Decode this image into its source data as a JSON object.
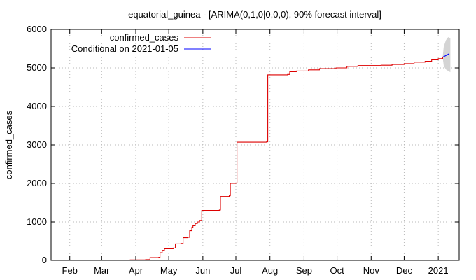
{
  "chart_data": {
    "type": "line",
    "title": "equatorial_guinea -  [ARIMA(0,1,0|0,0,0), 90% forecast interval]",
    "xlabel": "",
    "ylabel": "confirmed_cases",
    "ylim": [
      0,
      6000
    ],
    "xlim": [
      "2020-01-15",
      "2021-01-20"
    ],
    "grid": true,
    "legend_position": "top-center",
    "y_ticks": [
      "0",
      "1000",
      "2000",
      "3000",
      "4000",
      "5000",
      "6000"
    ],
    "x_ticks": [
      {
        "label": "Feb",
        "date": "2020-02-01"
      },
      {
        "label": "Mar",
        "date": "2020-03-01"
      },
      {
        "label": "Apr",
        "date": "2020-04-01"
      },
      {
        "label": "May",
        "date": "2020-05-01"
      },
      {
        "label": "Jun",
        "date": "2020-06-01"
      },
      {
        "label": "Jul",
        "date": "2020-07-01"
      },
      {
        "label": "Aug",
        "date": "2020-08-01"
      },
      {
        "label": "Sep",
        "date": "2020-09-01"
      },
      {
        "label": "Oct",
        "date": "2020-10-01"
      },
      {
        "label": "Nov",
        "date": "2020-11-01"
      },
      {
        "label": "Dec",
        "date": "2020-12-01"
      },
      {
        "label": "2021",
        "date": "2021-01-01"
      }
    ],
    "series": [
      {
        "name": "confirmed_cases",
        "color": "#dd0000",
        "step": true,
        "points": [
          [
            "2020-03-26",
            0
          ],
          [
            "2020-03-27",
            12
          ],
          [
            "2020-04-10",
            20
          ],
          [
            "2020-04-14",
            70
          ],
          [
            "2020-04-22",
            80
          ],
          [
            "2020-04-23",
            200
          ],
          [
            "2020-04-25",
            260
          ],
          [
            "2020-04-27",
            300
          ],
          [
            "2020-05-05",
            320
          ],
          [
            "2020-05-07",
            430
          ],
          [
            "2020-05-12",
            440
          ],
          [
            "2020-05-14",
            590
          ],
          [
            "2020-05-18",
            600
          ],
          [
            "2020-05-20",
            770
          ],
          [
            "2020-05-22",
            860
          ],
          [
            "2020-05-23",
            900
          ],
          [
            "2020-05-25",
            960
          ],
          [
            "2020-05-27",
            1000
          ],
          [
            "2020-05-29",
            1040
          ],
          [
            "2020-05-31",
            1300
          ],
          [
            "2020-06-16",
            1310
          ],
          [
            "2020-06-17",
            1660
          ],
          [
            "2020-06-25",
            1680
          ],
          [
            "2020-06-26",
            2000
          ],
          [
            "2020-07-01",
            2010
          ],
          [
            "2020-07-02",
            3070
          ],
          [
            "2020-07-29",
            3080
          ],
          [
            "2020-07-30",
            4820
          ],
          [
            "2020-08-17",
            4830
          ],
          [
            "2020-08-19",
            4900
          ],
          [
            "2020-08-25",
            4920
          ],
          [
            "2020-09-05",
            4950
          ],
          [
            "2020-09-15",
            4980
          ],
          [
            "2020-09-30",
            5000
          ],
          [
            "2020-10-10",
            5040
          ],
          [
            "2020-10-20",
            5060
          ],
          [
            "2020-11-10",
            5070
          ],
          [
            "2020-11-20",
            5090
          ],
          [
            "2020-12-01",
            5110
          ],
          [
            "2020-12-10",
            5150
          ],
          [
            "2020-12-20",
            5170
          ],
          [
            "2020-12-26",
            5210
          ],
          [
            "2021-01-01",
            5240
          ],
          [
            "2021-01-05",
            5280
          ]
        ]
      },
      {
        "name": "Conditional on 2021-01-05",
        "color": "#0000ff",
        "points": [
          [
            "2021-01-05",
            5280
          ],
          [
            "2021-01-08",
            5320
          ],
          [
            "2021-01-11",
            5370
          ]
        ]
      }
    ],
    "forecast_interval": {
      "label": "90% forecast interval",
      "color": "#d4d4d4",
      "points": [
        [
          "2021-01-05",
          5280,
          5280
        ],
        [
          "2021-01-06",
          5560,
          5050
        ],
        [
          "2021-01-08",
          5720,
          4960
        ],
        [
          "2021-01-10",
          5800,
          4920
        ],
        [
          "2021-01-12",
          5760,
          4890
        ]
      ]
    }
  }
}
